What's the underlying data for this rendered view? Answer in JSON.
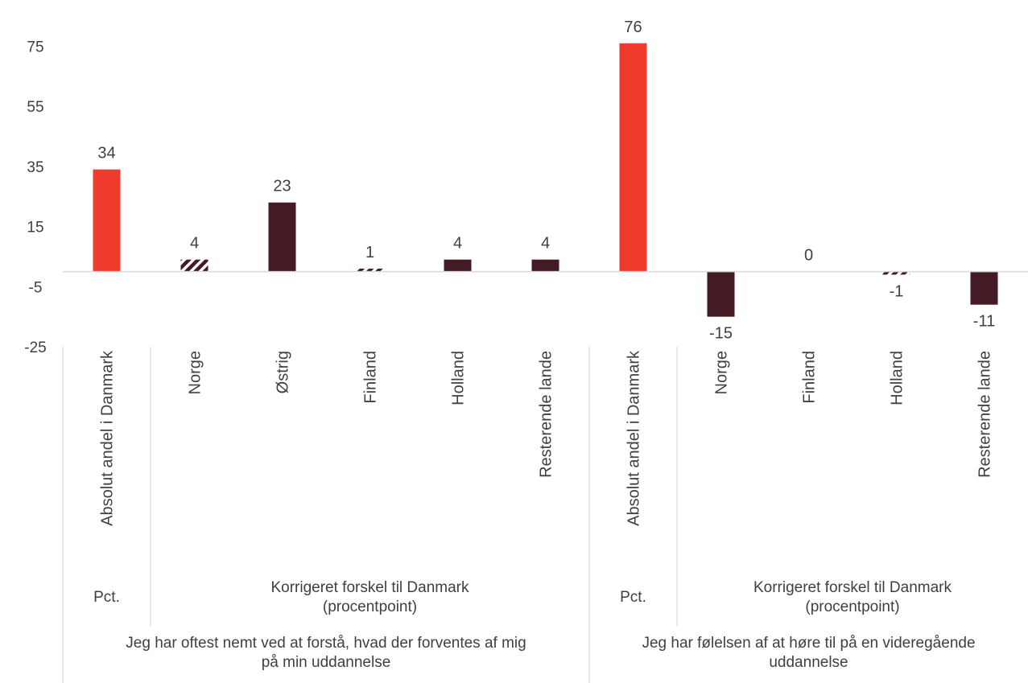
{
  "chart_data": {
    "type": "bar",
    "y_ticks": [
      75,
      55,
      35,
      15,
      -5,
      -25
    ],
    "ylim": [
      -25,
      75
    ],
    "grid": false,
    "legend": "none",
    "colors": {
      "absolute": "#ef3b2c",
      "difference": "#441a25",
      "not_significant": "hatched"
    },
    "bars": [
      {
        "category": "Absolut andel i Danmark",
        "value": 34,
        "label": "34",
        "kind": "absolute"
      },
      {
        "category": "Norge",
        "value": 4,
        "label": "4",
        "kind": "not_significant"
      },
      {
        "category": "Østrig",
        "value": 23,
        "label": "23",
        "kind": "difference"
      },
      {
        "category": "Finland",
        "value": 1,
        "label": "1",
        "kind": "not_significant"
      },
      {
        "category": "Holland",
        "value": 4,
        "label": "4",
        "kind": "difference"
      },
      {
        "category": "Resterende lande",
        "value": 4,
        "label": "4",
        "kind": "difference"
      },
      {
        "category": "Absolut andel i Danmark",
        "value": 76,
        "label": "76",
        "kind": "absolute"
      },
      {
        "category": "Norge",
        "value": -15,
        "label": "-15",
        "kind": "difference"
      },
      {
        "category": "Finland",
        "value": 0,
        "label": "0",
        "kind": "difference"
      },
      {
        "category": "Holland",
        "value": -1,
        "label": "-1",
        "kind": "not_significant"
      },
      {
        "category": "Resterende lande",
        "value": -11,
        "label": "-11",
        "kind": "difference"
      }
    ],
    "subgroups": [
      {
        "lines": [
          "Pct."
        ],
        "start": 0,
        "end": 0
      },
      {
        "lines": [
          "Korrigeret forskel til Danmark",
          "(procentpoint)"
        ],
        "start": 1,
        "end": 5
      },
      {
        "lines": [
          "Pct."
        ],
        "start": 6,
        "end": 6
      },
      {
        "lines": [
          "Korrigeret forskel til Danmark",
          "(procentpoint)"
        ],
        "start": 7,
        "end": 10
      }
    ],
    "groups": [
      {
        "lines": [
          "Jeg har oftest nemt ved at forstå, hvad der forventes af mig",
          "på min uddannelse"
        ],
        "start": 0,
        "end": 5
      },
      {
        "lines": [
          "Jeg har følelsen af at høre til på en videregående",
          "uddannelse"
        ],
        "start": 6,
        "end": 10
      }
    ]
  }
}
